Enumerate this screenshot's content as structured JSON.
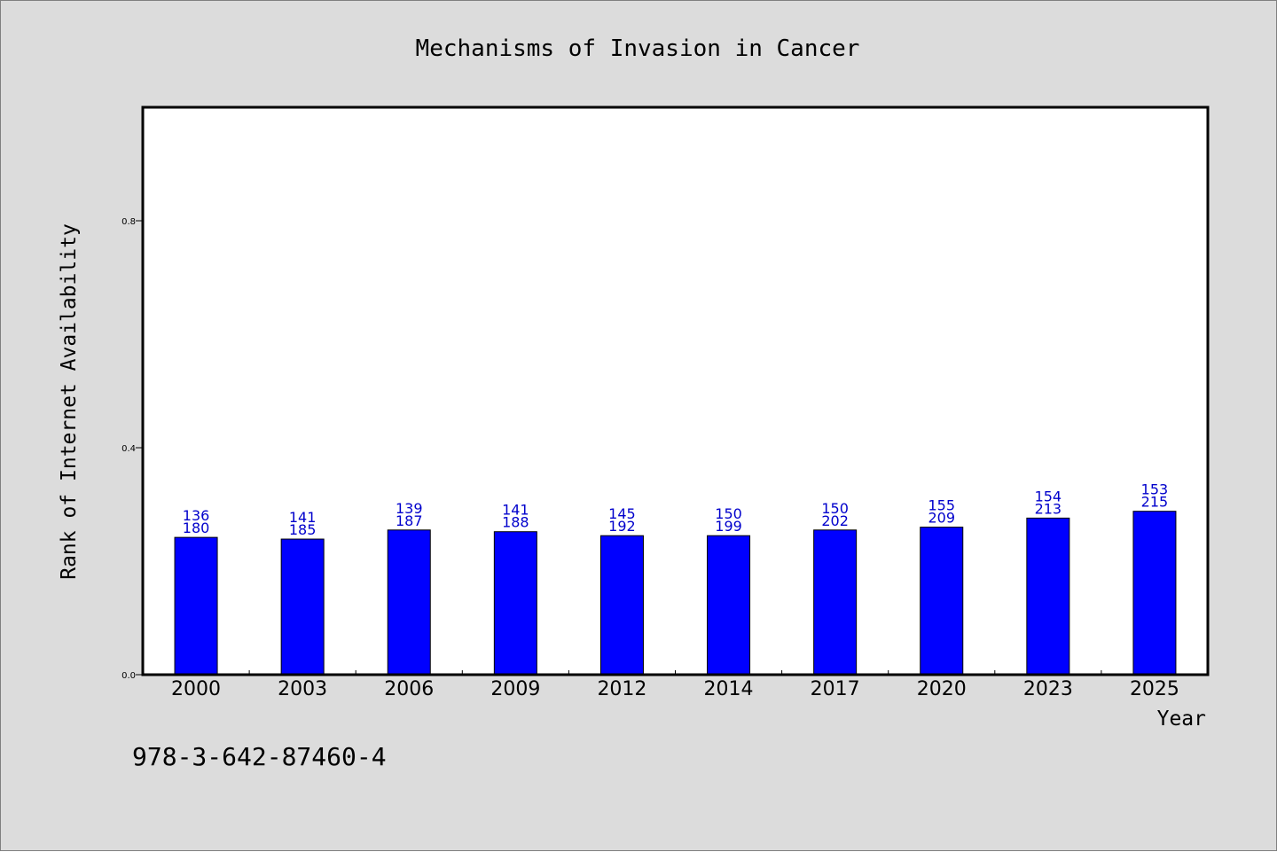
{
  "chart_data": {
    "type": "bar",
    "title": "Mechanisms of Invasion in Cancer",
    "xlabel": "Year",
    "ylabel": "Rank of Internet Availability",
    "categories": [
      "2000",
      "2003",
      "2006",
      "2009",
      "2012",
      "2014",
      "2017",
      "2020",
      "2023",
      "2025"
    ],
    "values": [
      0.242,
      0.239,
      0.255,
      0.252,
      0.245,
      0.245,
      0.255,
      0.26,
      0.276,
      0.288
    ],
    "labels_top": [
      "136",
      "141",
      "139",
      "141",
      "145",
      "150",
      "150",
      "155",
      "154",
      "153"
    ],
    "labels_bottom": [
      "180",
      "185",
      "187",
      "188",
      "192",
      "199",
      "202",
      "209",
      "213",
      "215"
    ],
    "ylim": [
      0,
      1.0
    ],
    "yticks": [
      0.0,
      0.4,
      0.8
    ],
    "ytick_labels": [
      "0.0",
      "0.4",
      "0.8"
    ],
    "grid": false,
    "bar_color": "#0000ff",
    "label_color": "#0000cc"
  },
  "footnote": "978-3-642-87460-4",
  "colors": {
    "background": "#dcdcdc",
    "plot_area": "#ffffff"
  }
}
